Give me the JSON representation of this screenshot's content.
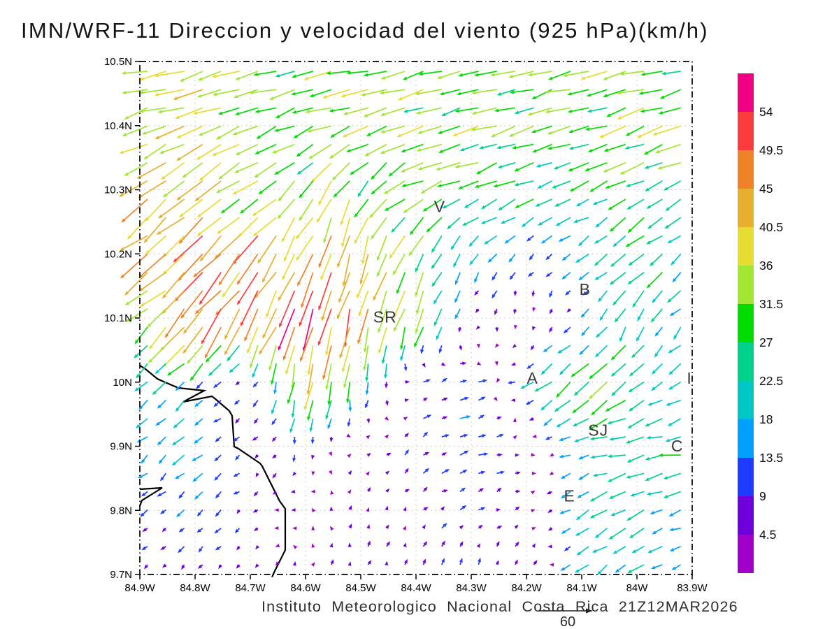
{
  "title": "IMN/WRF-11 Direccion y velocidad del viento (925 hPa)(km/h)",
  "footer": "Instituto Meteorologico Nacional Costa Rica 21Z12MAR2026",
  "reference_vector": {
    "label": "60",
    "value": 60
  },
  "chart_data": {
    "type": "vector_field",
    "title": "IMN/WRF-11 Direccion y velocidad del viento (925 hPa)(km/h)",
    "units": "km/h",
    "level": "925 hPa",
    "valid_time": "21Z12MAR2026",
    "x_tick_labels": [
      "84.9W",
      "84.8W",
      "84.7W",
      "84.6W",
      "84.5W",
      "84.4W",
      "84.3W",
      "84.2W",
      "84.1W",
      "84W",
      "83.9W"
    ],
    "y_tick_labels": [
      "10.5N",
      "10.4N",
      "10.3N",
      "10.2N",
      "10.1N",
      "10N",
      "9.9N",
      "9.8N",
      "9.7N"
    ],
    "grid": "dotted 0.1 degree",
    "colorbar": {
      "labels_top_to_bottom": [
        "54",
        "49.5",
        "45",
        "40.5",
        "36",
        "31.5",
        "27",
        "22.5",
        "18",
        "13.5",
        "9",
        "4.5"
      ],
      "levels": [
        4.5,
        9,
        13.5,
        18,
        22.5,
        27,
        31.5,
        36,
        40.5,
        45,
        49.5,
        54
      ],
      "colors_low_to_high": [
        "#A000C8",
        "#6E00DC",
        "#1E3CFF",
        "#00A0FF",
        "#00C8C8",
        "#00D28C",
        "#00DC00",
        "#A0E632",
        "#E6DC32",
        "#E6AF2D",
        "#F08228",
        "#FA3C3C",
        "#F00082"
      ]
    },
    "stations": [
      {
        "label": "V",
        "fx": 0.543,
        "fy": 0.283
      },
      {
        "label": "B",
        "fx": 0.806,
        "fy": 0.444
      },
      {
        "label": "SR",
        "fx": 0.444,
        "fy": 0.498
      },
      {
        "label": "A",
        "fx": 0.711,
        "fy": 0.617
      },
      {
        "label": "I",
        "fx": 0.995,
        "fy": 0.617
      },
      {
        "label": "SJ",
        "fx": 0.83,
        "fy": 0.719
      },
      {
        "label": "C",
        "fx": 0.973,
        "fy": 0.749
      },
      {
        "label": "E",
        "fx": 0.778,
        "fy": 0.847
      }
    ],
    "wind_grid": {
      "lons_w": [
        84.9,
        84.8,
        84.7,
        84.6,
        84.5,
        84.4,
        84.3,
        84.2,
        84.1,
        84.0,
        83.9
      ],
      "lats_n": [
        10.5,
        10.4,
        10.3,
        10.2,
        10.1,
        10.0,
        9.9,
        9.8,
        9.7
      ],
      "uv_kmh": [
        [
          [
            -33,
            -6
          ],
          [
            -35,
            -8
          ],
          [
            -30,
            -8
          ],
          [
            -30,
            -7
          ],
          [
            -31,
            -8
          ],
          [
            -29,
            -7
          ],
          [
            -30,
            -8
          ],
          [
            -30,
            -7
          ],
          [
            -29,
            -8
          ],
          [
            -32,
            -8
          ],
          [
            -30,
            -8
          ]
        ],
        [
          [
            -36,
            -10
          ],
          [
            -33,
            -12
          ],
          [
            -30,
            -12
          ],
          [
            -30,
            -11
          ],
          [
            -31,
            -10
          ],
          [
            -30,
            -10
          ],
          [
            -29,
            -10
          ],
          [
            -28,
            -10
          ],
          [
            -28,
            -9
          ],
          [
            -29,
            -10
          ],
          [
            -33,
            -12
          ]
        ],
        [
          [
            -33,
            -26
          ],
          [
            -33,
            -24
          ],
          [
            -29,
            -22
          ],
          [
            -22,
            -28
          ],
          [
            -14,
            -30
          ],
          [
            -27,
            -13
          ],
          [
            -26,
            -11
          ],
          [
            -23,
            -10
          ],
          [
            -20,
            -10
          ],
          [
            -24,
            -12
          ],
          [
            -27,
            -14
          ]
        ],
        [
          [
            -28,
            -25
          ],
          [
            -35,
            -33
          ],
          [
            -28,
            -34
          ],
          [
            -16,
            -43
          ],
          [
            -12,
            -38
          ],
          [
            -14,
            -32
          ],
          [
            -11,
            -14
          ],
          [
            -7,
            -9
          ],
          [
            -13,
            -9
          ],
          [
            -21,
            -20
          ],
          [
            -15,
            -13
          ]
        ],
        [
          [
            -21,
            -17
          ],
          [
            -34,
            -38
          ],
          [
            -25,
            -41
          ],
          [
            -12,
            -52
          ],
          [
            -9,
            -42
          ],
          [
            -13,
            -30
          ],
          [
            -5,
            -7
          ],
          [
            3,
            -4
          ],
          [
            -9,
            -7
          ],
          [
            -10,
            -21
          ],
          [
            -13,
            -11
          ]
        ],
        [
          [
            -17,
            -15
          ],
          [
            -12,
            -11
          ],
          [
            -4,
            -4
          ],
          [
            -7,
            -34
          ],
          [
            -4,
            -22
          ],
          [
            7,
            5
          ],
          [
            13,
            4
          ],
          [
            -14,
            -5
          ],
          [
            -25,
            -24
          ],
          [
            -22,
            -17
          ],
          [
            -14,
            -10
          ]
        ],
        [
          [
            -11,
            -10
          ],
          [
            -14,
            -12
          ],
          [
            -6,
            -4
          ],
          [
            -2,
            -10
          ],
          [
            2,
            4
          ],
          [
            8,
            7
          ],
          [
            12,
            2
          ],
          [
            4,
            2
          ],
          [
            -16,
            -6
          ],
          [
            -24,
            -4
          ],
          [
            -26,
            -3
          ]
        ],
        [
          [
            -7,
            -7
          ],
          [
            -9,
            -8
          ],
          [
            -5,
            -5
          ],
          [
            -3,
            2
          ],
          [
            2,
            5
          ],
          [
            4,
            4
          ],
          [
            8,
            4
          ],
          [
            6,
            3
          ],
          [
            -18,
            -10
          ],
          [
            -20,
            -12
          ],
          [
            -16,
            -5
          ]
        ],
        [
          [
            -6,
            -5
          ],
          [
            -6,
            -6
          ],
          [
            -4,
            -4
          ],
          [
            1,
            6
          ],
          [
            2,
            7
          ],
          [
            3,
            8
          ],
          [
            2,
            9
          ],
          [
            6,
            7
          ],
          [
            -14,
            -10
          ],
          [
            -18,
            -12
          ],
          [
            -14,
            -6
          ]
        ]
      ]
    },
    "coastline_fractions": [
      [
        [
          0.0,
          0.5927
        ],
        [
          0.0101,
          0.5995
        ],
        [
          0.0316,
          0.6185
        ],
        [
          0.0544,
          0.6294
        ],
        [
          0.0696,
          0.6362
        ],
        [
          0.1165,
          0.6417
        ],
        [
          0.0785,
          0.6635
        ],
        [
          0.1304,
          0.6526
        ],
        [
          0.1354,
          0.6567
        ],
        [
          0.162,
          0.6812
        ],
        [
          0.1671,
          0.6907
        ],
        [
          0.1684,
          0.7112
        ],
        [
          0.1709,
          0.7507
        ],
        [
          0.1785,
          0.7548
        ],
        [
          0.2177,
          0.7834
        ],
        [
          0.2215,
          0.7888
        ],
        [
          0.2532,
          0.857
        ],
        [
          0.2633,
          0.8719
        ],
        [
          0.2633,
          0.9523
        ],
        [
          0.2443,
          0.9932
        ],
        [
          0.2392,
          1.005
        ]
      ],
      [
        [
          0.0,
          0.8338
        ],
        [
          0.0405,
          0.8311
        ],
        [
          0.0038,
          0.8556
        ],
        [
          0.0,
          0.8665
        ]
      ]
    ]
  }
}
